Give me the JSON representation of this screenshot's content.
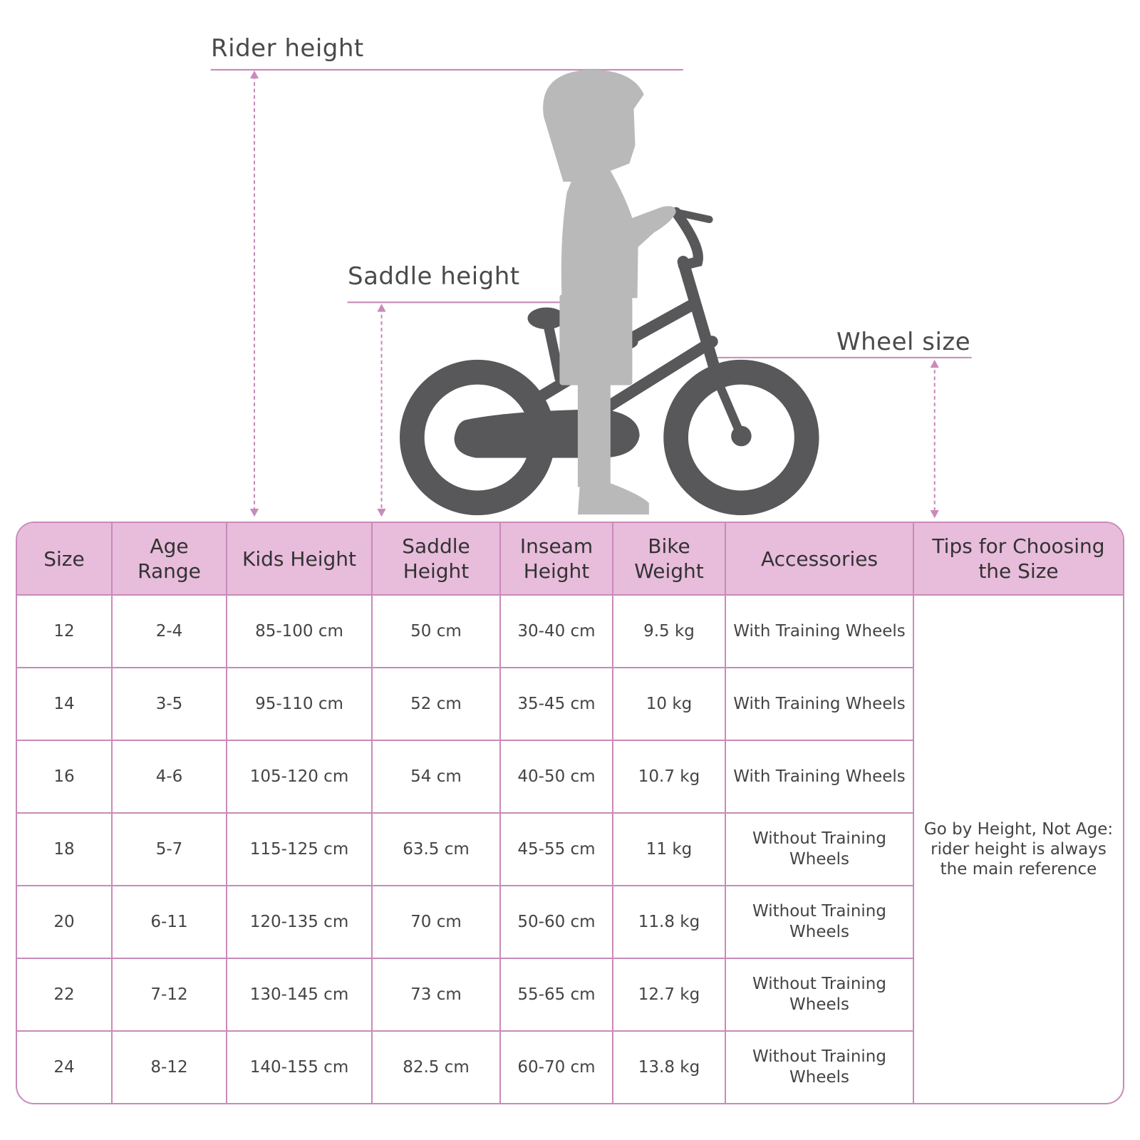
{
  "labels": {
    "rider_height": "Rider height",
    "saddle_height": "Saddle height",
    "wheel_size": "Wheel size"
  },
  "colors": {
    "accent": "#c98ab9",
    "header_bg": "#e8bcdb",
    "bike": "#58585a",
    "child": "#b9b9b9"
  },
  "table": {
    "columns": [
      "Size",
      "Age Range",
      "Kids Height",
      "Saddle Height",
      "Inseam Height",
      "Bike Weight",
      "Accessories",
      "Tips for Choosing the Size"
    ],
    "rows": [
      [
        "12",
        "2-4",
        "85-100 cm",
        "50 cm",
        "30-40 cm",
        "9.5 kg",
        "With Training Wheels"
      ],
      [
        "14",
        "3-5",
        "95-110 cm",
        "52 cm",
        "35-45 cm",
        "10 kg",
        "With Training Wheels"
      ],
      [
        "16",
        "4-6",
        "105-120 cm",
        "54 cm",
        "40-50 cm",
        "10.7 kg",
        "With Training Wheels"
      ],
      [
        "18",
        "5-7",
        "115-125 cm",
        "63.5 cm",
        "45-55 cm",
        "11 kg",
        "Without Training Wheels"
      ],
      [
        "20",
        "6-11",
        "120-135 cm",
        "70 cm",
        "50-60 cm",
        "11.8 kg",
        "Without Training Wheels"
      ],
      [
        "22",
        "7-12",
        "130-145 cm",
        "73 cm",
        "55-65 cm",
        "12.7 kg",
        "Without Training Wheels"
      ],
      [
        "24",
        "8-12",
        "140-155 cm",
        "82.5 cm",
        "60-70 cm",
        "13.8 kg",
        "Without Training Wheels"
      ]
    ],
    "tip": "Go by Height, Not Age: rider height is always the main reference"
  }
}
